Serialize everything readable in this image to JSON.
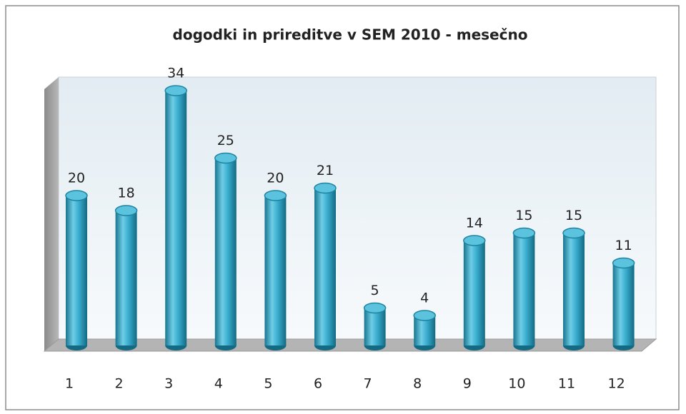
{
  "chart_data": {
    "type": "bar",
    "title": "dogodki in prireditve v SEM 2010 - mesečno",
    "categories": [
      "1",
      "2",
      "3",
      "4",
      "5",
      "6",
      "7",
      "8",
      "9",
      "10",
      "11",
      "12"
    ],
    "values": [
      20,
      18,
      34,
      25,
      20,
      21,
      5,
      4,
      14,
      15,
      15,
      11
    ],
    "color": "#35a7c7"
  }
}
